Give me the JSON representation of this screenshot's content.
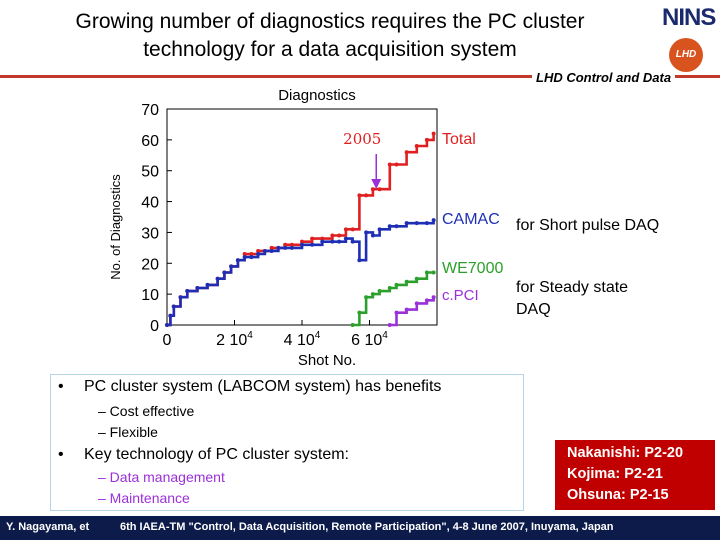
{
  "slide": {
    "title_line1": "Growing number of diagnostics requires the PC cluster",
    "title_line2": "technology for a data acquisition system",
    "subheading": "LHD Control and Data",
    "logo_text": "NINS",
    "logo_badge": "LHD"
  },
  "chart_data": {
    "type": "line",
    "title": "Diagnostics",
    "xlabel": "Shot  No.",
    "ylabel": "No. of Diagnostics",
    "xlim": [
      0,
      80000
    ],
    "ylim": [
      0,
      70
    ],
    "x_ticks": [
      0,
      20000,
      40000,
      60000
    ],
    "x_tick_labels": [
      "0",
      "2 10",
      "4 10",
      "6 10"
    ],
    "x_tick_exponent": "4",
    "y_ticks": [
      0,
      10,
      20,
      30,
      40,
      50,
      60,
      70
    ],
    "grid": false,
    "annotation": "2005",
    "annotation_x": 62000,
    "series": [
      {
        "name": "Total",
        "color": "#e02020",
        "x": [
          0,
          1000,
          2000,
          4000,
          6000,
          9000,
          12000,
          15000,
          17000,
          19000,
          21000,
          23000,
          25000,
          27000,
          29000,
          31000,
          33000,
          35000,
          37000,
          40000,
          43000,
          46000,
          49000,
          51000,
          53000,
          55000,
          57000,
          59000,
          61000,
          63000,
          66000,
          68000,
          71000,
          74000,
          77000,
          79000
        ],
        "y": [
          0,
          3,
          6,
          9,
          11,
          12,
          13,
          15,
          17,
          19,
          21,
          23,
          23,
          24,
          24,
          25,
          25,
          26,
          26,
          27,
          28,
          28,
          29,
          29,
          31,
          31,
          42,
          42,
          44,
          44,
          52,
          52,
          56,
          58,
          60,
          62
        ]
      },
      {
        "name": "CAMAC",
        "color": "#1f2fb5",
        "x": [
          0,
          1000,
          2000,
          4000,
          6000,
          9000,
          12000,
          15000,
          17000,
          19000,
          21000,
          23000,
          25000,
          27000,
          29000,
          31000,
          33000,
          35000,
          37000,
          40000,
          43000,
          46000,
          49000,
          51000,
          53000,
          55000,
          57000,
          59000,
          61000,
          63000,
          66000,
          68000,
          71000,
          74000,
          77000,
          79000
        ],
        "y": [
          0,
          3,
          6,
          9,
          11,
          12,
          13,
          15,
          17,
          19,
          21,
          22,
          22,
          23,
          24,
          24,
          25,
          25,
          25,
          26,
          26,
          27,
          27,
          27,
          28,
          27,
          21,
          30,
          29,
          31,
          32,
          32,
          33,
          33,
          33,
          34
        ]
      },
      {
        "name": "WE7000",
        "color": "#2ca02c",
        "x": [
          55000,
          57000,
          59000,
          61000,
          63000,
          66000,
          68000,
          71000,
          74000,
          77000,
          79000
        ],
        "y": [
          0,
          4,
          9,
          10,
          11,
          12,
          13,
          14,
          15,
          17,
          17
        ]
      },
      {
        "name": "c.PCI",
        "color": "#9b30d9",
        "x": [
          66000,
          68000,
          71000,
          74000,
          77000,
          79000
        ],
        "y": [
          0,
          4,
          5,
          7,
          8,
          9
        ]
      }
    ]
  },
  "annotations": {
    "short_pulse": "for Short pulse DAQ",
    "steady_state_1": "for Steady state",
    "steady_state_2": "DAQ"
  },
  "bullets": {
    "item1": "PC cluster system (LABCOM system) has benefits",
    "item1_sub1": "– Cost effective",
    "item1_sub2": "– Flexible",
    "item2": "Key technology of PC cluster system:",
    "item2_sub1": "– Data management",
    "item2_sub2": "– Maintenance",
    "marker": "•"
  },
  "references": {
    "ref1": "Nakanishi: P2-20",
    "ref2": "Kojima: P2-21",
    "ref3": "Ohsuna: P2-15"
  },
  "footer": {
    "author": "Y. Nagayama, et",
    "conference": "6th IAEA-TM \"Control, Data Acquisition, Remote Participation\", 4-8 June 2007, Inuyama, Japan"
  },
  "colors": {
    "accent_line": "#c0392b",
    "footer_bg": "#0d1b4a",
    "ref_box": "#c00000"
  }
}
